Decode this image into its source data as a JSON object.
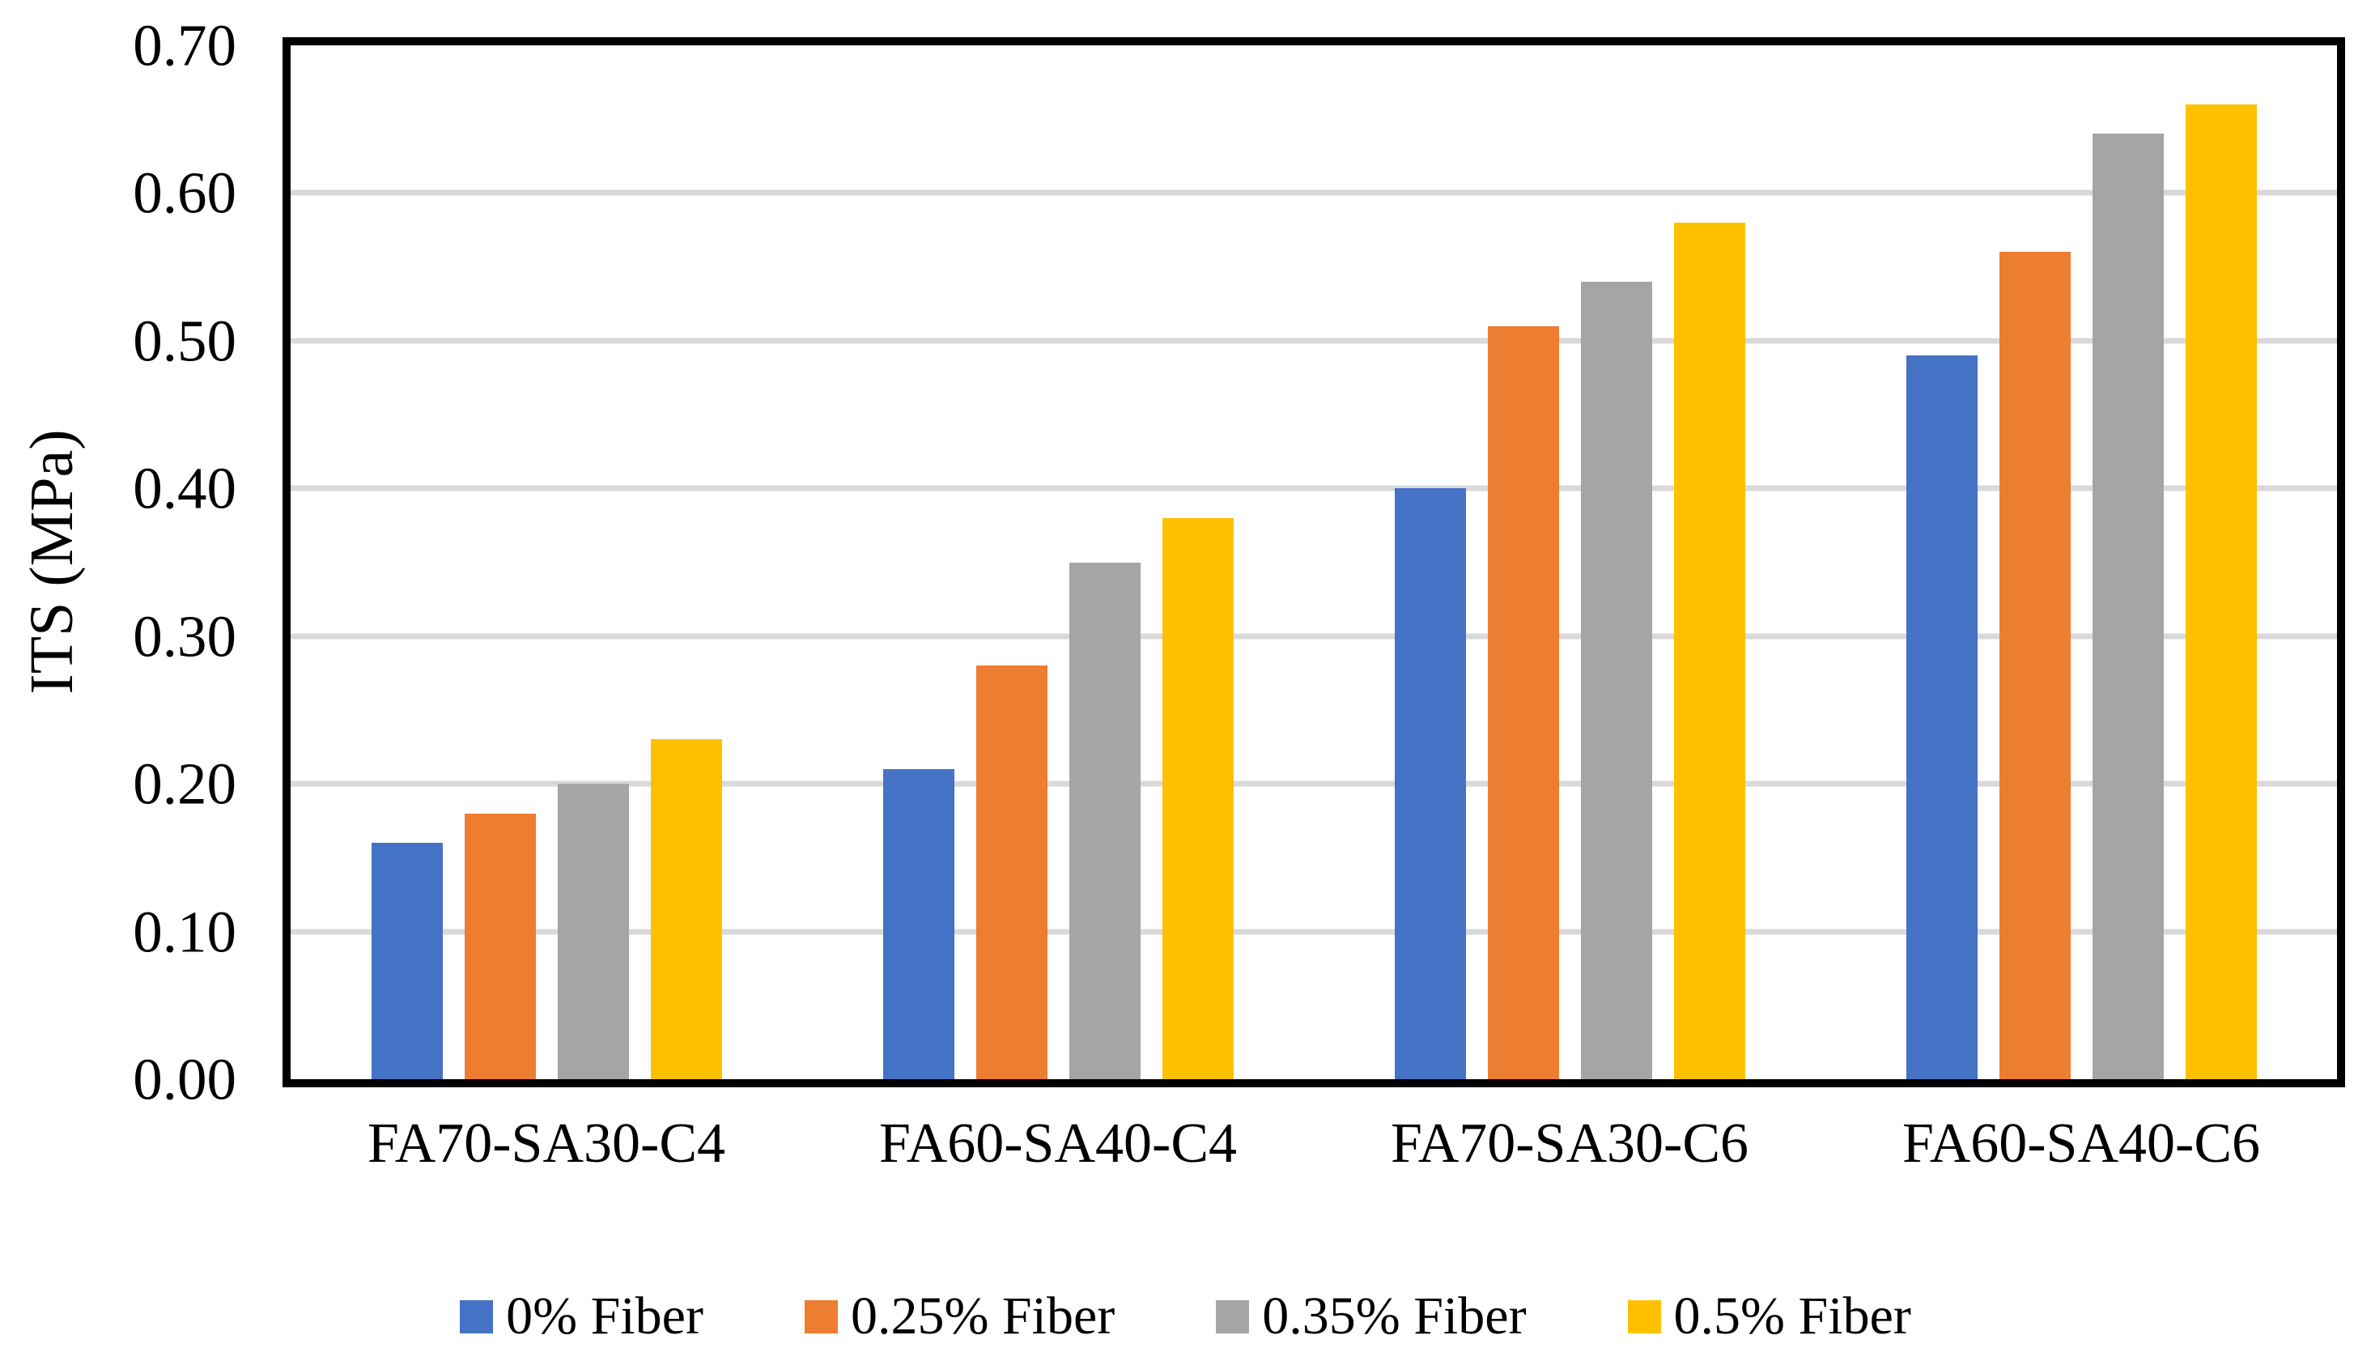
{
  "chart_data": {
    "type": "bar",
    "title": "",
    "xlabel": "",
    "ylabel": "ITS (MPa)",
    "ylim": [
      0,
      0.7
    ],
    "ytick_interval": 0.1,
    "ytick_labels": [
      "0.70",
      "0.60",
      "0.50",
      "0.40",
      "0.30",
      "0.20",
      "0.10",
      "0.00"
    ],
    "grid": "horizontal",
    "legend_position": "bottom",
    "categories": [
      "FA70-SA30-C4",
      "FA60-SA40-C4",
      "FA70-SA30-C6",
      "FA60-SA40-C6"
    ],
    "series": [
      {
        "name": "0% Fiber",
        "color": "#4472C4",
        "values": [
          0.16,
          0.21,
          0.4,
          0.49
        ]
      },
      {
        "name": "0.25% Fiber",
        "color": "#ED7D31",
        "values": [
          0.18,
          0.28,
          0.51,
          0.56
        ]
      },
      {
        "name": "0.35% Fiber",
        "color": "#A5A5A5",
        "values": [
          0.2,
          0.35,
          0.54,
          0.64
        ]
      },
      {
        "name": "0.5% Fiber",
        "color": "#FFC000",
        "values": [
          0.23,
          0.38,
          0.58,
          0.66
        ]
      }
    ],
    "colors": {
      "gridline": "#D9D9D9",
      "axis": "#000000",
      "background": "#FFFFFF",
      "text": "#000000"
    }
  }
}
